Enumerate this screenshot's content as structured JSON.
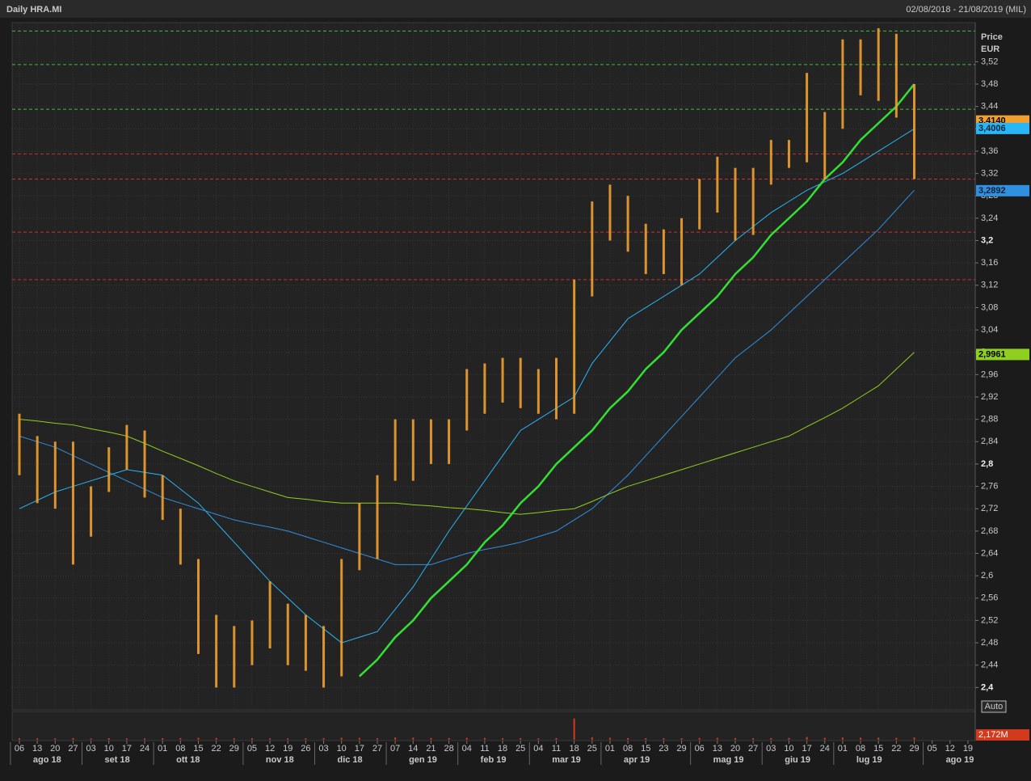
{
  "chart_data": {
    "type": "ohlc",
    "title": "Daily HRA.MI",
    "subtitle": "02/08/2018 - 21/08/2019 (MIL)",
    "y_axis_label": "Price",
    "y_axis_unit": "EUR",
    "categories": [
      "06",
      "13",
      "20",
      "27",
      "03",
      "10",
      "17",
      "24",
      "01",
      "08",
      "15",
      "22",
      "29",
      "05",
      "12",
      "19",
      "26",
      "03",
      "10",
      "17",
      "27",
      "07",
      "14",
      "21",
      "28",
      "04",
      "11",
      "18",
      "25",
      "04",
      "11",
      "18",
      "25",
      "01",
      "08",
      "15",
      "23",
      "29",
      "06",
      "13",
      "20",
      "27",
      "03",
      "10",
      "17",
      "24",
      "01",
      "08",
      "15",
      "22",
      "29",
      "05",
      "12",
      "19"
    ],
    "months": [
      "ago 18",
      "set 18",
      "ott 18",
      "nov 18",
      "dic 18",
      "gen 19",
      "feb 19",
      "mar 19",
      "apr 19",
      "mag 19",
      "giu 19",
      "lug 19",
      "ago 19"
    ],
    "ylim": [
      2.36,
      3.59
    ],
    "yticks": [
      {
        "value": 2.4,
        "label": "2,4"
      },
      {
        "value": 2.44,
        "label": "2,44"
      },
      {
        "value": 2.48,
        "label": "2,48"
      },
      {
        "value": 2.52,
        "label": "2,52"
      },
      {
        "value": 2.56,
        "label": "2,56"
      },
      {
        "value": 2.6,
        "label": "2,6"
      },
      {
        "value": 2.64,
        "label": "2,64"
      },
      {
        "value": 2.68,
        "label": "2,68"
      },
      {
        "value": 2.72,
        "label": "2,72"
      },
      {
        "value": 2.76,
        "label": "2,76"
      },
      {
        "value": 2.8,
        "label": "2,8"
      },
      {
        "value": 2.84,
        "label": "2,84"
      },
      {
        "value": 2.88,
        "label": "2,88"
      },
      {
        "value": 2.92,
        "label": "2,92"
      },
      {
        "value": 2.96,
        "label": "2,96"
      },
      {
        "value": 3,
        "label": "3"
      },
      {
        "value": 3.04,
        "label": "3,04"
      },
      {
        "value": 3.08,
        "label": "3,08"
      },
      {
        "value": 3.12,
        "label": "3,12"
      },
      {
        "value": 3.16,
        "label": "3,16"
      },
      {
        "value": 3.2,
        "label": "3,2"
      },
      {
        "value": 3.24,
        "label": "3,24"
      },
      {
        "value": 3.28,
        "label": "3,28"
      },
      {
        "value": 3.32,
        "label": "3,32"
      },
      {
        "value": 3.36,
        "label": "3,36"
      },
      {
        "value": 3.4,
        "label": "3,4"
      },
      {
        "value": 3.44,
        "label": "3,44"
      },
      {
        "value": 3.48,
        "label": "3,48"
      },
      {
        "value": 3.52,
        "label": "3,52"
      }
    ],
    "bold_ticks": [
      2.4,
      2.8,
      3.2
    ],
    "grid": true,
    "price": {
      "color": "#f0a030",
      "high": [
        2.89,
        2.85,
        2.84,
        2.84,
        2.76,
        2.83,
        2.87,
        2.86,
        2.78,
        2.72,
        2.63,
        2.53,
        2.51,
        2.52,
        2.59,
        2.55,
        2.53,
        2.51,
        2.63,
        2.73,
        2.78,
        2.88,
        2.88,
        2.88,
        2.88,
        2.97,
        2.98,
        2.99,
        2.99,
        2.97,
        2.99,
        3.13,
        3.27,
        3.3,
        3.28,
        3.23,
        3.22,
        3.24,
        3.31,
        3.35,
        3.33,
        3.33,
        3.38,
        3.38,
        3.5,
        3.43,
        3.56,
        3.56,
        3.58,
        3.57,
        3.48,
        null,
        null,
        null
      ],
      "low": [
        2.78,
        2.73,
        2.72,
        2.62,
        2.67,
        2.75,
        2.79,
        2.74,
        2.7,
        2.62,
        2.46,
        2.4,
        2.4,
        2.44,
        2.47,
        2.44,
        2.43,
        2.4,
        2.42,
        2.61,
        2.63,
        2.77,
        2.77,
        2.8,
        2.8,
        2.86,
        2.89,
        2.91,
        2.9,
        2.89,
        2.88,
        2.89,
        3.1,
        3.2,
        3.18,
        3.14,
        3.14,
        3.12,
        3.22,
        3.25,
        3.2,
        3.21,
        3.3,
        3.33,
        3.34,
        3.31,
        3.4,
        3.46,
        3.45,
        3.42,
        3.31,
        null,
        null,
        null
      ],
      "last": {
        "value": 3.414,
        "label": "3,4140"
      }
    },
    "series": [
      {
        "color": "#29b6f6",
        "width": 1,
        "last": {
          "value": 3.4006,
          "label": "3,4006"
        },
        "values": [
          2.72,
          2.735,
          2.75,
          2.76,
          2.77,
          2.78,
          2.79,
          2.785,
          2.78,
          2.755,
          2.73,
          2.695,
          2.66,
          2.625,
          2.59,
          2.56,
          2.53,
          2.505,
          2.48,
          2.49,
          2.5,
          2.54,
          2.58,
          2.63,
          2.68,
          2.725,
          2.77,
          2.815,
          2.86,
          2.88,
          2.9,
          2.92,
          2.98,
          3.02,
          3.06,
          3.08,
          3.1,
          3.12,
          3.14,
          3.17,
          3.2,
          3.225,
          3.25,
          3.27,
          3.29,
          3.305,
          3.32,
          3.34,
          3.36,
          3.38,
          3.4,
          null,
          null,
          null
        ]
      },
      {
        "color": "#2f8fe0",
        "width": 1,
        "last": {
          "value": 3.2892,
          "label": "3,2892"
        },
        "values": [
          2.85,
          2.84,
          2.83,
          2.815,
          2.8,
          2.785,
          2.77,
          2.755,
          2.74,
          2.73,
          2.72,
          2.71,
          2.7,
          2.693,
          2.687,
          2.68,
          2.67,
          2.66,
          2.65,
          2.64,
          2.63,
          2.62,
          2.62,
          2.62,
          2.63,
          2.64,
          2.647,
          2.653,
          2.66,
          2.67,
          2.68,
          2.7,
          2.72,
          2.75,
          2.78,
          2.815,
          2.85,
          2.885,
          2.92,
          2.955,
          2.99,
          3.015,
          3.04,
          3.07,
          3.1,
          3.13,
          3.16,
          3.19,
          3.22,
          3.255,
          3.29,
          null,
          null,
          null
        ]
      },
      {
        "color": "#8fcf1f",
        "width": 1,
        "last": {
          "value": 2.9961,
          "label": "2,9961"
        },
        "values": [
          2.88,
          2.877,
          2.873,
          2.87,
          2.863,
          2.857,
          2.85,
          2.837,
          2.823,
          2.81,
          2.797,
          2.783,
          2.77,
          2.76,
          2.75,
          2.74,
          2.737,
          2.733,
          2.73,
          2.73,
          2.73,
          2.73,
          2.727,
          2.725,
          2.722,
          2.72,
          2.717,
          2.713,
          2.71,
          2.713,
          2.717,
          2.72,
          2.733,
          2.747,
          2.76,
          2.77,
          2.78,
          2.79,
          2.8,
          2.81,
          2.82,
          2.83,
          2.84,
          2.85,
          2.867,
          2.883,
          2.9,
          2.92,
          2.94,
          2.97,
          3.0,
          null,
          null,
          null
        ]
      },
      {
        "color": "#33e033",
        "width": 2.5,
        "values": [
          null,
          null,
          null,
          null,
          null,
          null,
          null,
          null,
          null,
          null,
          null,
          null,
          null,
          null,
          null,
          null,
          null,
          null,
          null,
          2.42,
          2.45,
          2.49,
          2.52,
          2.56,
          2.59,
          2.62,
          2.66,
          2.69,
          2.73,
          2.76,
          2.8,
          2.83,
          2.86,
          2.9,
          2.93,
          2.97,
          3.0,
          3.04,
          3.07,
          3.1,
          3.14,
          3.17,
          3.21,
          3.24,
          3.27,
          3.31,
          3.34,
          3.38,
          3.41,
          3.44,
          3.48,
          null,
          null,
          null
        ]
      }
    ],
    "levels": [
      {
        "value": 3.575,
        "color": "#3fbf3f"
      },
      {
        "value": 3.515,
        "color": "#3fbf3f"
      },
      {
        "value": 3.435,
        "color": "#3fbf3f"
      },
      {
        "value": 3.355,
        "color": "#c83232"
      },
      {
        "value": 3.31,
        "color": "#c83232"
      },
      {
        "value": 3.215,
        "color": "#c83232"
      },
      {
        "value": 3.13,
        "color": "#c83232"
      }
    ],
    "volume": {
      "color": "#d23a1e",
      "ylim": [
        0,
        25
      ],
      "button": "Auto",
      "last": {
        "value": 2.172,
        "label": "2,172M"
      },
      "values": [
        1.5,
        1.4,
        1.3,
        1.6,
        1.2,
        1.5,
        1.4,
        1.3,
        1.5,
        1.6,
        1.8,
        1.7,
        1.4,
        1.5,
        1.3,
        1.4,
        1.5,
        1.6,
        1.9,
        1.8,
        1.4,
        2.2,
        2.0,
        1.7,
        1.6,
        1.8,
        1.7,
        1.5,
        1.6,
        1.4,
        1.6,
        20,
        2.4,
        1.9,
        1.6,
        1.5,
        1.4,
        1.5,
        1.7,
        1.8,
        1.6,
        1.5,
        1.6,
        1.7,
        2.6,
        1.8,
        2.1,
        1.9,
        2.0,
        1.8,
        2.2,
        null,
        null,
        null
      ]
    }
  }
}
